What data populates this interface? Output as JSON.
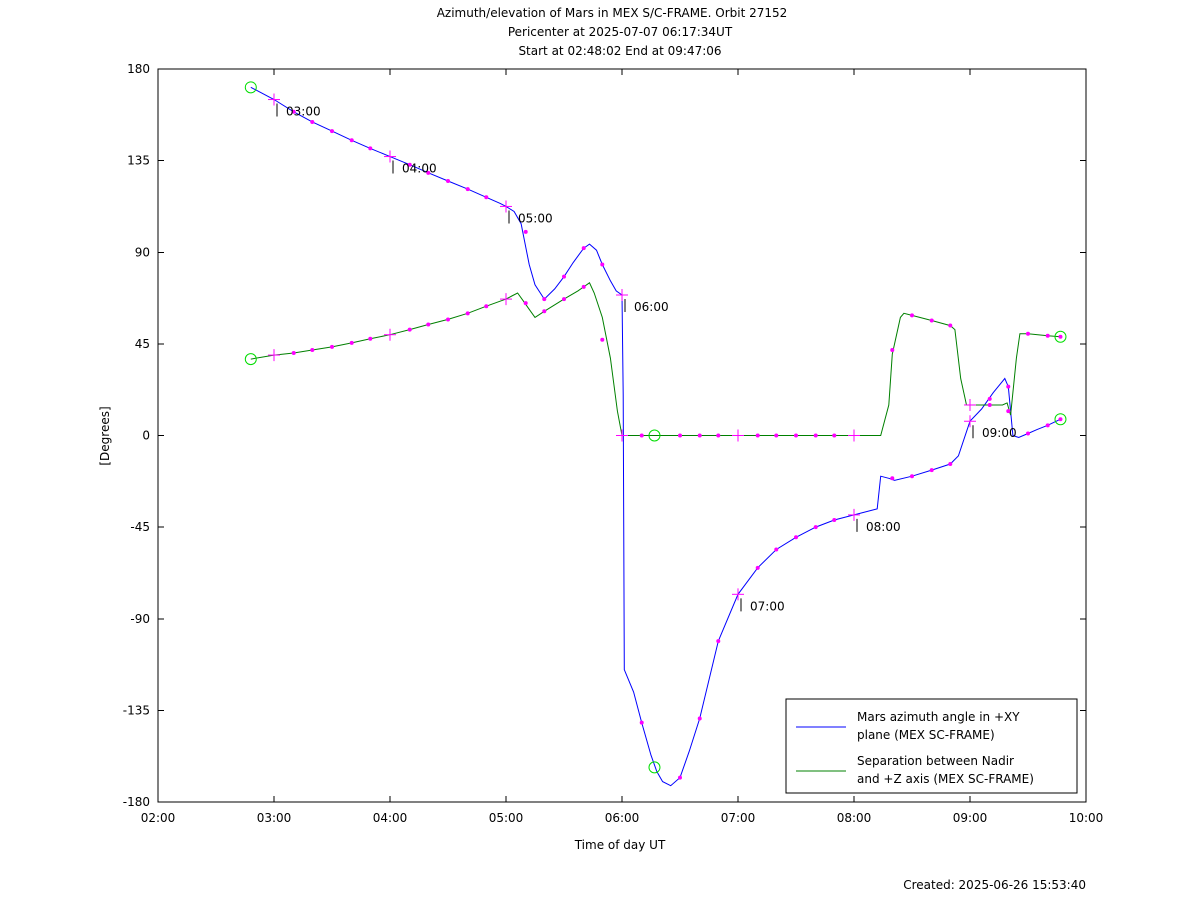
{
  "chart_data": {
    "type": "line",
    "title_lines": [
      "Azimuth/elevation of Mars in MEX S/C-FRAME.  Orbit 27152",
      "Pericenter at 2025-07-07 06:17:34UT",
      "Start at 02:48:02 End at 09:47:06"
    ],
    "xlabel": "Time of day UT",
    "ylabel": "[Degrees]",
    "xlim": [
      2.0,
      10.0
    ],
    "ylim": [
      -180,
      180
    ],
    "xticks": [
      {
        "v": 2,
        "label": "02:00"
      },
      {
        "v": 3,
        "label": "03:00"
      },
      {
        "v": 4,
        "label": "04:00"
      },
      {
        "v": 5,
        "label": "05:00"
      },
      {
        "v": 6,
        "label": "06:00"
      },
      {
        "v": 7,
        "label": "07:00"
      },
      {
        "v": 8,
        "label": "08:00"
      },
      {
        "v": 9,
        "label": "09:00"
      },
      {
        "v": 10,
        "label": "10:00"
      }
    ],
    "yticks": [
      {
        "v": 180,
        "label": "180"
      },
      {
        "v": 135,
        "label": "135"
      },
      {
        "v": 90,
        "label": "90"
      },
      {
        "v": 45,
        "label": "45"
      },
      {
        "v": 0,
        "label": "0"
      },
      {
        "v": -45,
        "label": "-45"
      },
      {
        "v": -90,
        "label": "-90"
      },
      {
        "v": -135,
        "label": "-135"
      },
      {
        "v": -180,
        "label": "-180"
      }
    ],
    "footer": "Created: 2025-06-26 15:53:40",
    "legend": {
      "placement": "bottom-right"
    },
    "series": [
      {
        "name_lines": [
          "Mars azimuth angle in +XY",
          "plane (MEX SC-FRAME)"
        ],
        "color": "#0000ff",
        "points": [
          [
            2.8,
            171
          ],
          [
            3.0,
            165
          ],
          [
            3.17,
            159
          ],
          [
            3.33,
            154
          ],
          [
            3.5,
            149.5
          ],
          [
            3.67,
            145
          ],
          [
            3.83,
            141
          ],
          [
            4.0,
            137
          ],
          [
            4.17,
            133
          ],
          [
            4.33,
            129
          ],
          [
            4.5,
            125
          ],
          [
            4.67,
            121
          ],
          [
            4.83,
            117
          ],
          [
            4.95,
            114
          ],
          [
            5.0,
            112.5
          ],
          [
            5.07,
            110
          ],
          [
            5.13,
            104
          ],
          [
            5.2,
            84
          ],
          [
            5.25,
            74
          ],
          [
            5.33,
            67
          ],
          [
            5.42,
            72
          ],
          [
            5.5,
            78
          ],
          [
            5.58,
            85
          ],
          [
            5.67,
            92
          ],
          [
            5.72,
            94
          ],
          [
            5.78,
            91
          ],
          [
            5.83,
            84
          ],
          [
            5.9,
            76
          ],
          [
            5.95,
            71
          ],
          [
            6.0,
            69
          ],
          [
            6.01,
            20
          ],
          [
            6.02,
            -115
          ],
          [
            6.1,
            -126
          ],
          [
            6.17,
            -141
          ],
          [
            6.25,
            -157
          ],
          [
            6.3,
            -165
          ],
          [
            6.35,
            -170
          ],
          [
            6.42,
            -172
          ],
          [
            6.5,
            -168
          ],
          [
            6.58,
            -155
          ],
          [
            6.67,
            -139
          ],
          [
            6.83,
            -101
          ],
          [
            7.0,
            -78
          ],
          [
            7.17,
            -65
          ],
          [
            7.33,
            -56
          ],
          [
            7.5,
            -50
          ],
          [
            7.67,
            -45
          ],
          [
            7.83,
            -41.5
          ],
          [
            8.0,
            -39
          ],
          [
            8.2,
            -36
          ],
          [
            8.23,
            -20
          ],
          [
            8.3,
            -21
          ],
          [
            8.35,
            -22
          ],
          [
            8.5,
            -20
          ],
          [
            8.67,
            -17
          ],
          [
            8.83,
            -14
          ],
          [
            8.9,
            -10
          ],
          [
            9.0,
            7
          ],
          [
            9.1,
            13
          ],
          [
            9.2,
            21
          ],
          [
            9.3,
            28
          ],
          [
            9.33,
            24
          ],
          [
            9.37,
            0
          ],
          [
            9.42,
            -1
          ],
          [
            9.5,
            1
          ],
          [
            9.58,
            3
          ],
          [
            9.67,
            5
          ],
          [
            9.78,
            8
          ]
        ],
        "markers": [
          [
            3.17,
            159
          ],
          [
            3.33,
            154
          ],
          [
            3.5,
            149.5
          ],
          [
            3.67,
            145
          ],
          [
            3.83,
            141
          ],
          [
            4.17,
            133
          ],
          [
            4.33,
            129
          ],
          [
            4.5,
            125
          ],
          [
            4.67,
            121
          ],
          [
            4.83,
            117
          ],
          [
            5.17,
            100
          ],
          [
            5.33,
            67
          ],
          [
            5.5,
            78
          ],
          [
            5.67,
            92
          ],
          [
            5.83,
            84
          ],
          [
            6.17,
            -141
          ],
          [
            6.5,
            -168
          ],
          [
            6.67,
            -139
          ],
          [
            6.83,
            -101
          ],
          [
            7.17,
            -65
          ],
          [
            7.33,
            -56
          ],
          [
            7.5,
            -50
          ],
          [
            7.67,
            -45
          ],
          [
            7.83,
            -41.5
          ],
          [
            8.33,
            -21
          ],
          [
            8.5,
            -20
          ],
          [
            8.67,
            -17
          ],
          [
            8.83,
            -14
          ],
          [
            9.17,
            18
          ],
          [
            9.33,
            24
          ],
          [
            9.5,
            1
          ],
          [
            9.67,
            5
          ],
          [
            9.78,
            8
          ]
        ],
        "hour_marks": [
          {
            "x": 3.0,
            "y": 165,
            "label": "03:00"
          },
          {
            "x": 4.0,
            "y": 137,
            "label": "04:00"
          },
          {
            "x": 5.0,
            "y": 112.5,
            "label": "05:00"
          },
          {
            "x": 6.0,
            "y": 69,
            "label": "06:00"
          },
          {
            "x": 7.0,
            "y": -78,
            "label": "07:00"
          },
          {
            "x": 8.0,
            "y": -39,
            "label": "08:00"
          },
          {
            "x": 9.0,
            "y": 7,
            "label": "09:00"
          }
        ],
        "circles": [
          [
            2.8,
            171
          ],
          [
            6.28,
            -163
          ],
          [
            9.78,
            8
          ]
        ]
      },
      {
        "name_lines": [
          "Separation between Nadir",
          "and +Z axis (MEX SC-FRAME)"
        ],
        "color": "#008000",
        "points": [
          [
            2.8,
            37.5
          ],
          [
            3.0,
            39.5
          ],
          [
            3.17,
            40.5
          ],
          [
            3.33,
            42
          ],
          [
            3.5,
            43.5
          ],
          [
            3.67,
            45.5
          ],
          [
            3.83,
            47.5
          ],
          [
            4.0,
            49.5
          ],
          [
            4.17,
            52
          ],
          [
            4.33,
            54.5
          ],
          [
            4.5,
            57
          ],
          [
            4.67,
            60
          ],
          [
            4.83,
            63.5
          ],
          [
            5.0,
            67
          ],
          [
            5.05,
            68.5
          ],
          [
            5.1,
            70
          ],
          [
            5.15,
            66
          ],
          [
            5.2,
            62
          ],
          [
            5.25,
            58
          ],
          [
            5.33,
            61
          ],
          [
            5.5,
            67
          ],
          [
            5.62,
            71
          ],
          [
            5.67,
            73
          ],
          [
            5.72,
            75
          ],
          [
            5.76,
            70
          ],
          [
            5.83,
            58
          ],
          [
            5.9,
            38
          ],
          [
            5.96,
            12
          ],
          [
            6.0,
            0
          ],
          [
            6.1,
            0
          ],
          [
            6.5,
            0
          ],
          [
            7.0,
            0
          ],
          [
            7.5,
            0
          ],
          [
            8.0,
            0
          ],
          [
            8.23,
            0
          ],
          [
            8.3,
            15
          ],
          [
            8.33,
            40
          ],
          [
            8.4,
            58
          ],
          [
            8.43,
            60
          ],
          [
            8.5,
            59
          ],
          [
            8.67,
            56.5
          ],
          [
            8.83,
            54
          ],
          [
            8.87,
            52
          ],
          [
            8.92,
            28
          ],
          [
            8.97,
            15
          ],
          [
            9.05,
            15
          ],
          [
            9.17,
            15
          ],
          [
            9.28,
            15
          ],
          [
            9.32,
            16
          ],
          [
            9.35,
            10
          ],
          [
            9.4,
            38
          ],
          [
            9.43,
            50
          ],
          [
            9.5,
            50
          ],
          [
            9.67,
            49
          ],
          [
            9.78,
            48.5
          ]
        ],
        "markers": [
          [
            3.17,
            40.5
          ],
          [
            3.33,
            42
          ],
          [
            3.5,
            43.5
          ],
          [
            3.67,
            45.5
          ],
          [
            3.83,
            47.5
          ],
          [
            4.17,
            52
          ],
          [
            4.33,
            54.5
          ],
          [
            4.5,
            57
          ],
          [
            4.67,
            60
          ],
          [
            4.83,
            63.5
          ],
          [
            5.17,
            65
          ],
          [
            5.33,
            61
          ],
          [
            5.5,
            67
          ],
          [
            5.67,
            73
          ],
          [
            5.83,
            47
          ],
          [
            6.17,
            0
          ],
          [
            6.5,
            0
          ],
          [
            6.67,
            0
          ],
          [
            6.83,
            0
          ],
          [
            7.17,
            0
          ],
          [
            7.33,
            0
          ],
          [
            7.5,
            0
          ],
          [
            7.67,
            0
          ],
          [
            7.83,
            0
          ],
          [
            8.33,
            42
          ],
          [
            8.5,
            59
          ],
          [
            8.67,
            56.5
          ],
          [
            8.83,
            54
          ],
          [
            9.17,
            15
          ],
          [
            9.33,
            12
          ],
          [
            9.5,
            50
          ],
          [
            9.67,
            49
          ],
          [
            9.78,
            48.5
          ]
        ],
        "hour_marks": [
          {
            "x": 3.0,
            "y": 39.5
          },
          {
            "x": 4.0,
            "y": 49.5
          },
          {
            "x": 5.0,
            "y": 67
          },
          {
            "x": 6.0,
            "y": 0
          },
          {
            "x": 7.0,
            "y": 0
          },
          {
            "x": 8.0,
            "y": 0
          },
          {
            "x": 9.0,
            "y": 15
          }
        ],
        "circles": [
          [
            2.8,
            37.5
          ],
          [
            6.28,
            0
          ],
          [
            9.78,
            48.5
          ]
        ]
      }
    ]
  }
}
